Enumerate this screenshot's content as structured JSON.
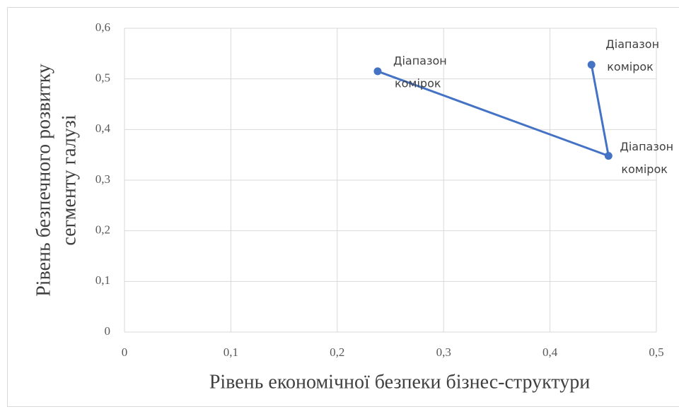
{
  "chart_data": {
    "type": "line",
    "xlabel": "Рівень економічної безпеки бізнес-структури",
    "ylabel": [
      "Рівень безпечного розвитку",
      "сегменту галузі"
    ],
    "series": [
      {
        "color": "#4472c4",
        "x": [
          0.238,
          0.455,
          0.439
        ],
        "values": [
          0.515,
          0.348,
          0.528
        ],
        "point_labels": [
          [
            "Діапазон",
            "комірок"
          ],
          [
            "Діапазон",
            "комірок"
          ],
          [
            "Діапазон",
            "комірок"
          ]
        ]
      }
    ],
    "xlim": [
      0,
      0.5
    ],
    "xticks": [
      0,
      {
        "value": 0.1,
        "label": "0,1"
      },
      {
        "value": 0.2,
        "label": "0,2"
      },
      {
        "value": 0.3,
        "label": "0,3"
      },
      {
        "value": 0.4,
        "label": "0,4"
      },
      {
        "value": 0.5,
        "label": "0,5"
      }
    ],
    "ylim": [
      0,
      0.6
    ],
    "yticks": [
      0,
      {
        "value": 0.1,
        "label": "0,1"
      },
      {
        "value": 0.2,
        "label": "0,2"
      },
      {
        "value": 0.3,
        "label": "0,3"
      },
      {
        "value": 0.4,
        "label": "0,4"
      },
      {
        "value": 0.5,
        "label": "0,5"
      },
      {
        "value": 0.6,
        "label": "0,6"
      }
    ],
    "grid": true
  }
}
